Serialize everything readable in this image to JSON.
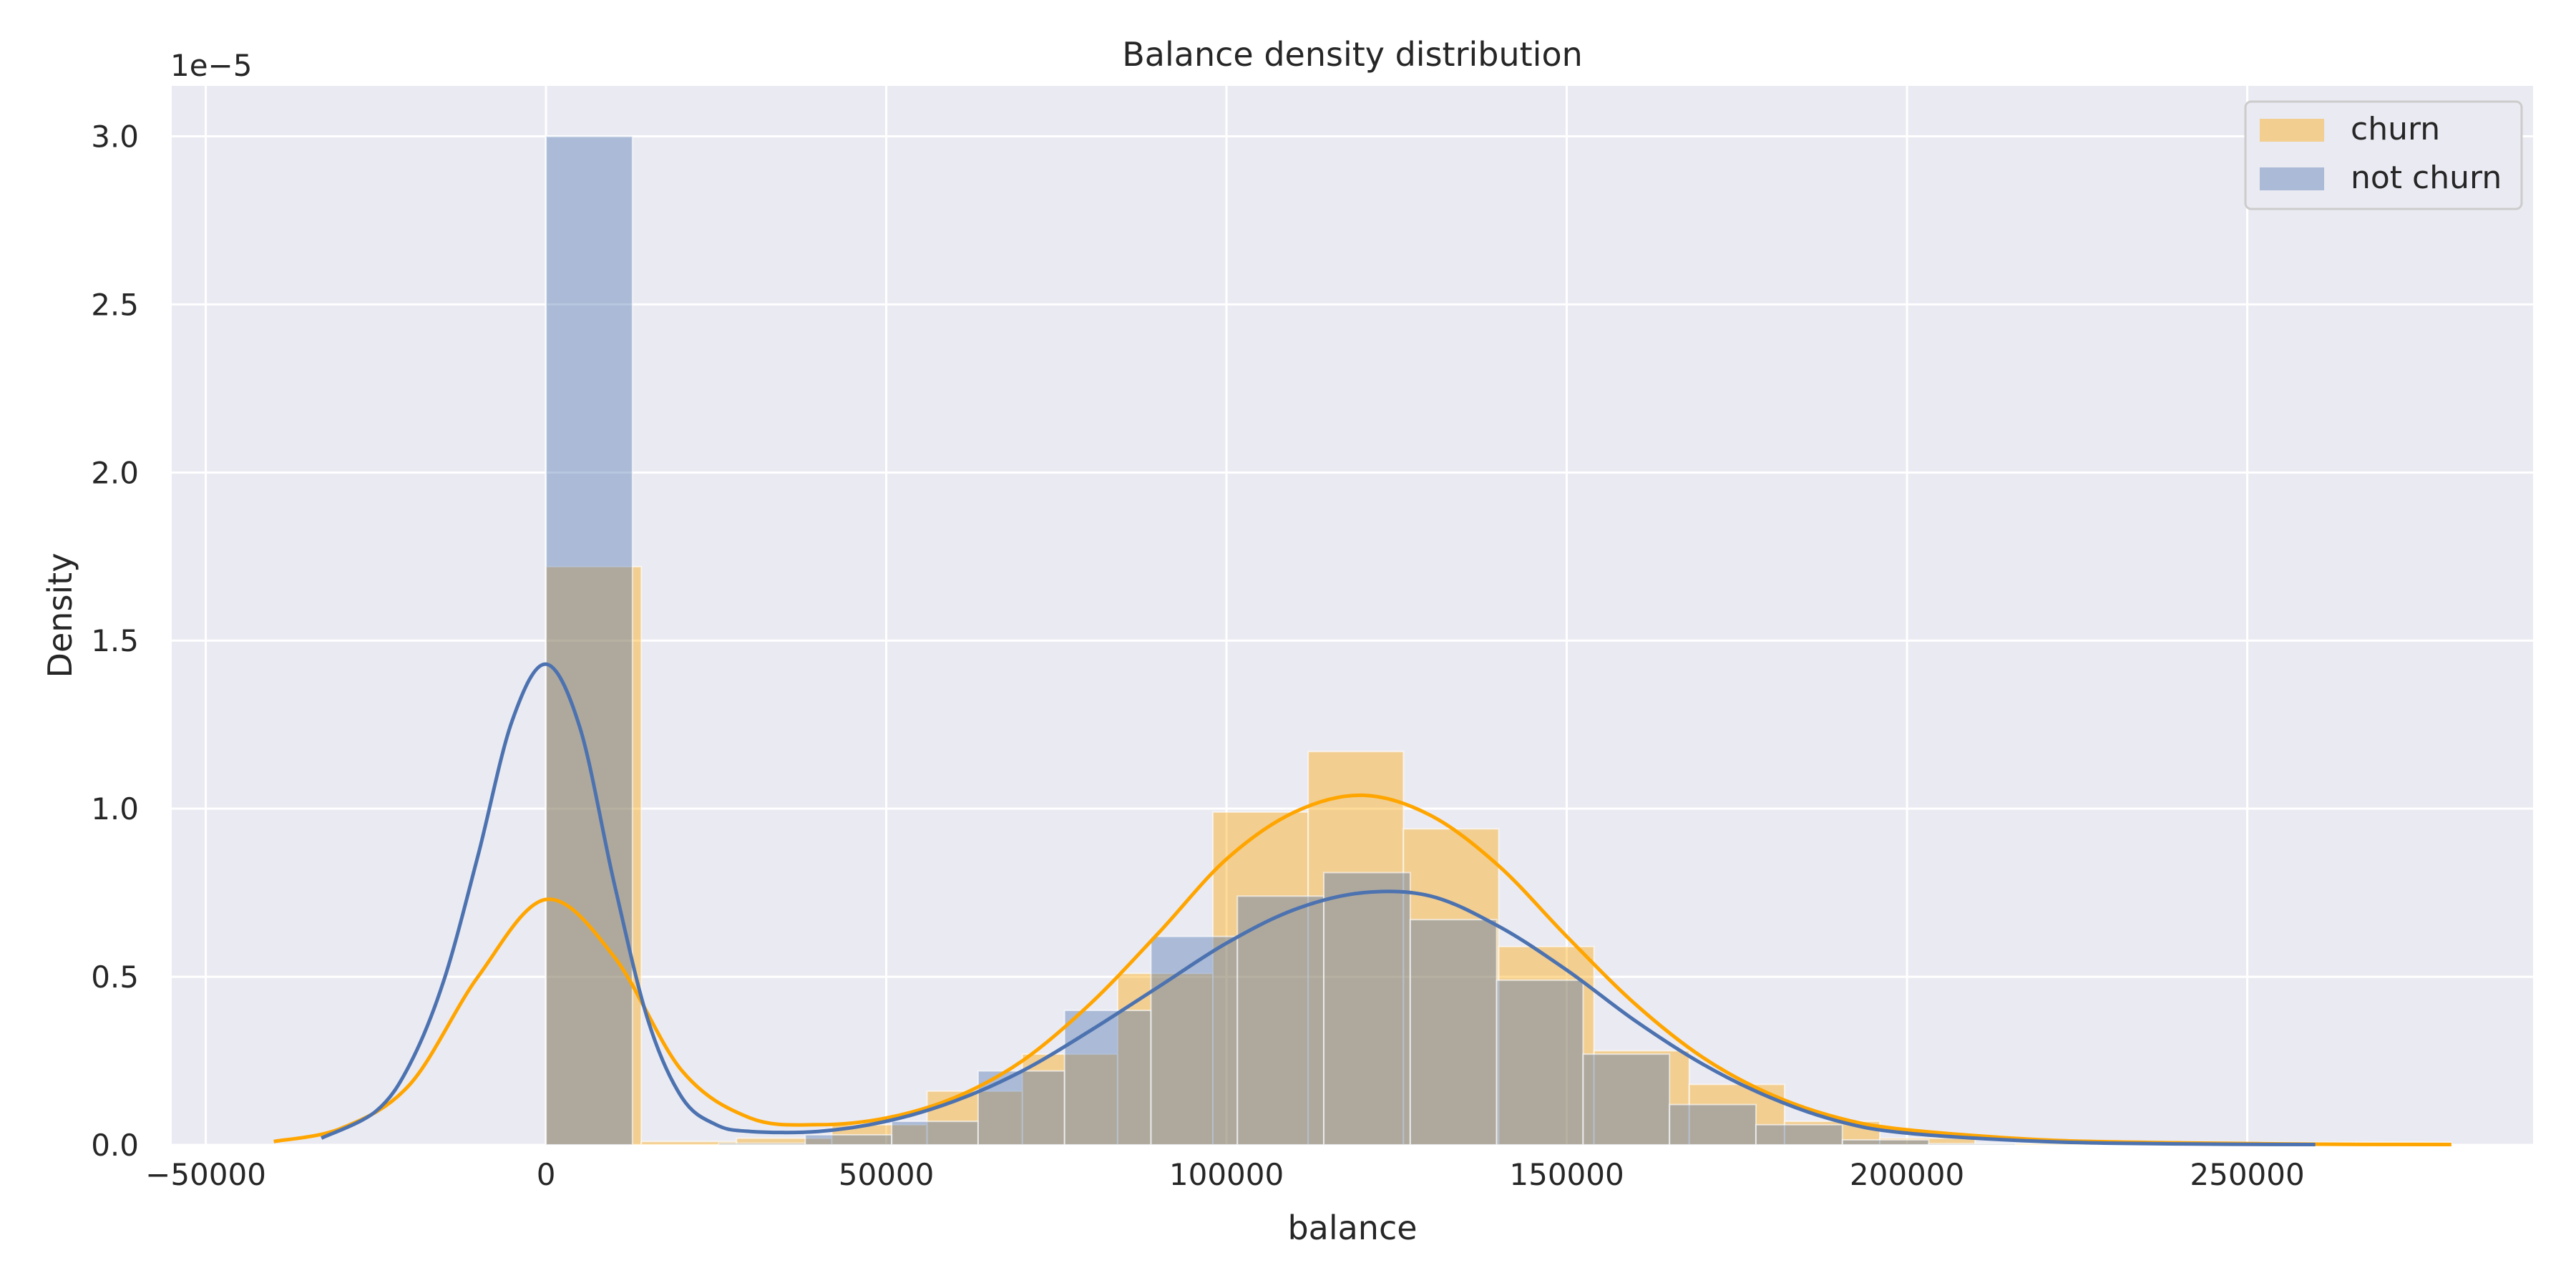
{
  "chart_data": {
    "type": "bar",
    "title": "Balance density distribution",
    "xlabel": "balance",
    "ylabel": "Density",
    "y_multiplier": "1e−5",
    "xlim": [
      -55000,
      292000
    ],
    "ylim": [
      0,
      3.15
    ],
    "x_ticks": [
      -50000,
      0,
      50000,
      100000,
      150000,
      200000,
      250000
    ],
    "x_tick_labels": [
      "−50000",
      "0",
      "50000",
      "100000",
      "150000",
      "200000",
      "250000"
    ],
    "y_ticks": [
      0,
      0.5,
      1.0,
      1.5,
      2.0,
      2.5,
      3.0
    ],
    "y_tick_labels": [
      "0.0",
      "0.5",
      "1.0",
      "1.5",
      "2.0",
      "2.5",
      "3.0"
    ],
    "grid": true,
    "legend_position": "top-right",
    "colors": {
      "churn": "#ffa500",
      "not_churn": "#4c72b0",
      "overlap": "#aea497",
      "background": "#eaeaf2",
      "grid": "#ffffff"
    },
    "series": [
      {
        "name": "churn",
        "kind": "histogram",
        "bins": [
          {
            "start": 0,
            "end": 14000,
            "value": 1.72
          },
          {
            "start": 14000,
            "end": 28000,
            "value": 0.01
          },
          {
            "start": 28000,
            "end": 42000,
            "value": 0.02
          },
          {
            "start": 42000,
            "end": 56000,
            "value": 0.06
          },
          {
            "start": 56000,
            "end": 70000,
            "value": 0.16
          },
          {
            "start": 70000,
            "end": 84000,
            "value": 0.27
          },
          {
            "start": 84000,
            "end": 98000,
            "value": 0.51
          },
          {
            "start": 98000,
            "end": 112000,
            "value": 0.99
          },
          {
            "start": 112000,
            "end": 126000,
            "value": 1.17
          },
          {
            "start": 126000,
            "end": 140000,
            "value": 0.94
          },
          {
            "start": 140000,
            "end": 154000,
            "value": 0.59
          },
          {
            "start": 154000,
            "end": 168000,
            "value": 0.28
          },
          {
            "start": 168000,
            "end": 182000,
            "value": 0.18
          },
          {
            "start": 182000,
            "end": 196000,
            "value": 0.07
          },
          {
            "start": 196000,
            "end": 210000,
            "value": 0.02
          },
          {
            "start": 210000,
            "end": 224000,
            "value": 0.004
          },
          {
            "start": 224000,
            "end": 238000,
            "value": 0.003
          },
          {
            "start": 238000,
            "end": 252000,
            "value": 0.002
          },
          {
            "start": 252000,
            "end": 266000,
            "value": 0.008
          },
          {
            "start": 266000,
            "end": 280000,
            "value": 0.008
          }
        ]
      },
      {
        "name": "not churn",
        "kind": "histogram",
        "bins": [
          {
            "start": 0,
            "end": 12700,
            "value": 3.0
          },
          {
            "start": 12700,
            "end": 25400,
            "value": 0.0
          },
          {
            "start": 25400,
            "end": 38100,
            "value": 0.005
          },
          {
            "start": 38100,
            "end": 50800,
            "value": 0.03
          },
          {
            "start": 50800,
            "end": 63500,
            "value": 0.07
          },
          {
            "start": 63500,
            "end": 76200,
            "value": 0.22
          },
          {
            "start": 76200,
            "end": 88900,
            "value": 0.4
          },
          {
            "start": 88900,
            "end": 101600,
            "value": 0.62
          },
          {
            "start": 101600,
            "end": 114300,
            "value": 0.74
          },
          {
            "start": 114300,
            "end": 127000,
            "value": 0.81
          },
          {
            "start": 127000,
            "end": 139700,
            "value": 0.67
          },
          {
            "start": 139700,
            "end": 152400,
            "value": 0.49
          },
          {
            "start": 152400,
            "end": 165100,
            "value": 0.27
          },
          {
            "start": 165100,
            "end": 177800,
            "value": 0.12
          },
          {
            "start": 177800,
            "end": 190500,
            "value": 0.06
          },
          {
            "start": 190500,
            "end": 203200,
            "value": 0.015
          },
          {
            "start": 203200,
            "end": 215900,
            "value": 0.004
          }
        ]
      },
      {
        "name": "churn",
        "kind": "kde",
        "x": [
          -40000,
          -30000,
          -20000,
          -10000,
          0,
          10000,
          20000,
          30000,
          40000,
          50000,
          60000,
          70000,
          80000,
          90000,
          100000,
          110000,
          120000,
          130000,
          140000,
          150000,
          160000,
          170000,
          180000,
          190000,
          200000,
          220000,
          240000,
          260000,
          280000
        ],
        "y": [
          0.01,
          0.05,
          0.18,
          0.5,
          0.73,
          0.56,
          0.22,
          0.08,
          0.06,
          0.08,
          0.14,
          0.25,
          0.42,
          0.63,
          0.85,
          0.99,
          1.04,
          0.98,
          0.83,
          0.62,
          0.42,
          0.26,
          0.15,
          0.08,
          0.045,
          0.015,
          0.006,
          0.002,
          0.001
        ]
      },
      {
        "name": "not churn",
        "kind": "kde",
        "x": [
          -33000,
          -25000,
          -20000,
          -15000,
          -10000,
          -5000,
          0,
          5000,
          10000,
          15000,
          20000,
          25000,
          30000,
          40000,
          50000,
          60000,
          70000,
          80000,
          90000,
          100000,
          110000,
          120000,
          130000,
          140000,
          150000,
          160000,
          170000,
          180000,
          190000,
          200000,
          220000,
          240000,
          260000
        ],
        "y": [
          0.02,
          0.1,
          0.24,
          0.49,
          0.86,
          1.26,
          1.43,
          1.24,
          0.78,
          0.37,
          0.14,
          0.06,
          0.04,
          0.04,
          0.07,
          0.13,
          0.22,
          0.34,
          0.47,
          0.6,
          0.7,
          0.75,
          0.74,
          0.65,
          0.52,
          0.37,
          0.24,
          0.14,
          0.07,
          0.035,
          0.01,
          0.003,
          0.001
        ]
      }
    ]
  }
}
